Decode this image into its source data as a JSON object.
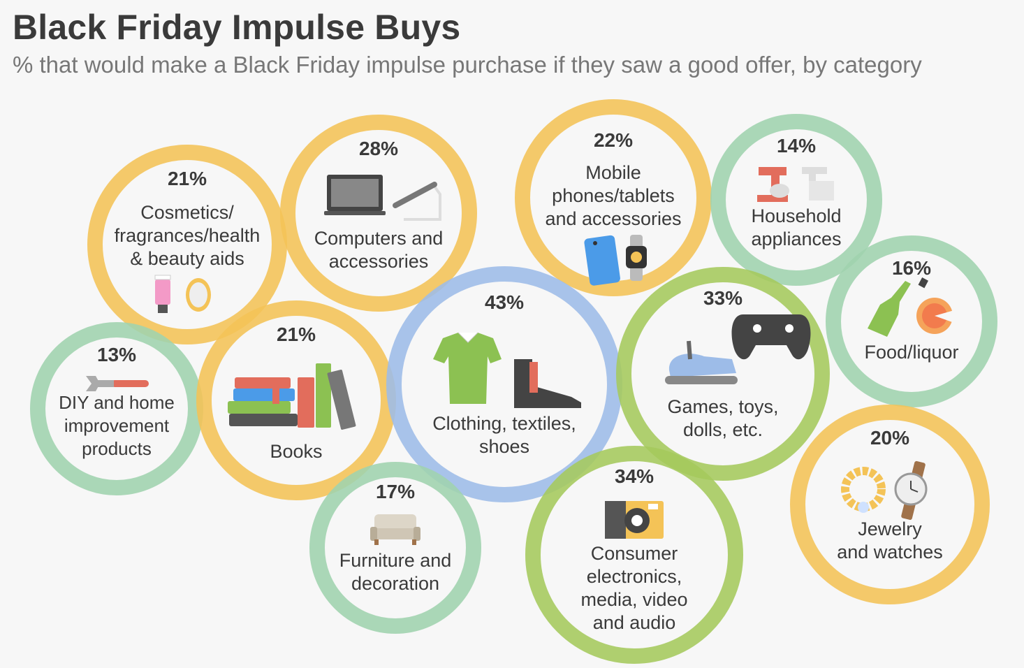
{
  "title": "Black Friday Impulse Buys",
  "subtitle": "% that would make a Black Friday impulse purchase if they saw a good offer, by category",
  "colors": {
    "yellow": "#f4c357",
    "blue": "#9dbce8",
    "green": "#9fd3ae",
    "lime": "#a5ca5c"
  },
  "chart_data": {
    "type": "bubble",
    "unit": "%",
    "points": [
      {
        "category": "Cosmetics/ fragrances/health & beauty aids",
        "lines": [
          "Cosmetics/",
          "fragrances/health",
          "& beauty aids"
        ],
        "value": 21,
        "label": "21%",
        "color": "yellow",
        "icon": "cosmetics-icon"
      },
      {
        "category": "Computers and accessories",
        "lines": [
          "Computers and",
          "accessories"
        ],
        "value": 28,
        "label": "28%",
        "color": "yellow",
        "icon": "laptop-icon"
      },
      {
        "category": "Mobile phones/tablets and accessories",
        "lines": [
          "Mobile",
          "phones/tablets",
          "and accessories"
        ],
        "value": 22,
        "label": "22%",
        "color": "yellow",
        "icon": "phone-watch-icon"
      },
      {
        "category": "Household appliances",
        "lines": [
          "Household",
          "appliances"
        ],
        "value": 14,
        "label": "14%",
        "color": "green",
        "icon": "mixer-icon"
      },
      {
        "category": "Food/liquor",
        "lines": [
          "Food/liquor"
        ],
        "value": 16,
        "label": "16%",
        "color": "green",
        "icon": "bottle-pie-icon"
      },
      {
        "category": "DIY and home improvement products",
        "lines": [
          "DIY and home",
          "improvement",
          "products"
        ],
        "value": 13,
        "label": "13%",
        "color": "green",
        "icon": "wrench-icon"
      },
      {
        "category": "Books",
        "lines": [
          "Books"
        ],
        "value": 21,
        "label": "21%",
        "color": "yellow",
        "icon": "books-icon"
      },
      {
        "category": "Clothing, textiles, shoes",
        "lines": [
          "Clothing, textiles,",
          "shoes"
        ],
        "value": 43,
        "label": "43%",
        "color": "blue",
        "icon": "shirt-boot-icon"
      },
      {
        "category": "Games, toys, dolls, etc.",
        "lines": [
          "Games, toys,",
          "dolls, etc."
        ],
        "value": 33,
        "label": "33%",
        "color": "lime",
        "icon": "toy-gamepad-icon"
      },
      {
        "category": "Jewelry and watches",
        "lines": [
          "Jewelry",
          "and watches"
        ],
        "value": 20,
        "label": "20%",
        "color": "yellow",
        "icon": "jewelry-watch-icon"
      },
      {
        "category": "Furniture and decoration",
        "lines": [
          "Furniture and",
          "decoration"
        ],
        "value": 17,
        "label": "17%",
        "color": "green",
        "icon": "sofa-icon"
      },
      {
        "category": "Consumer electronics, media, video and audio",
        "lines": [
          "Consumer",
          "electronics,",
          "media, video",
          "and audio"
        ],
        "value": 34,
        "label": "34%",
        "color": "lime",
        "icon": "camera-icon"
      }
    ]
  }
}
